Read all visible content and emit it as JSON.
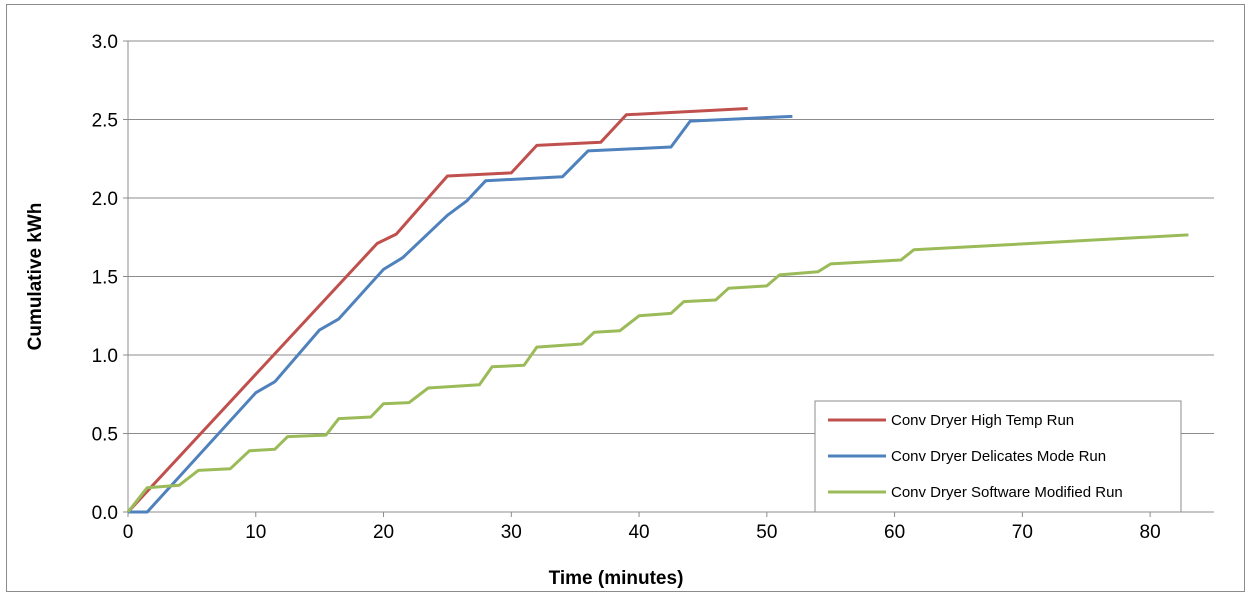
{
  "chart_data": {
    "type": "line",
    "title": "",
    "xlabel": "Time (minutes)",
    "ylabel": "Cumulative kWh",
    "xlim": [
      0,
      85
    ],
    "ylim": [
      0,
      3.0
    ],
    "x_ticks": [
      0,
      10,
      20,
      30,
      40,
      50,
      60,
      70,
      80
    ],
    "y_ticks": [
      "0.0",
      "0.5",
      "1.0",
      "1.5",
      "2.0",
      "2.5",
      "3.0"
    ],
    "grid": "horizontal",
    "legend_position": "bottom-right",
    "series": [
      {
        "name": "Conv Dryer High Temp Run",
        "color": "#c0504d",
        "points": [
          [
            0,
            0
          ],
          [
            19.5,
            1.71
          ],
          [
            21,
            1.77
          ],
          [
            25,
            2.14
          ],
          [
            30,
            2.16
          ],
          [
            32,
            2.335
          ],
          [
            37,
            2.355
          ],
          [
            39,
            2.53
          ],
          [
            48.5,
            2.57
          ]
        ]
      },
      {
        "name": "Conv Dryer Delicates Mode Run",
        "color": "#4f81bd",
        "points": [
          [
            0,
            0
          ],
          [
            1.5,
            0
          ],
          [
            10,
            0.76
          ],
          [
            11.5,
            0.83
          ],
          [
            15,
            1.16
          ],
          [
            16.5,
            1.23
          ],
          [
            20,
            1.545
          ],
          [
            21.5,
            1.62
          ],
          [
            25,
            1.89
          ],
          [
            26.5,
            1.98
          ],
          [
            28,
            2.11
          ],
          [
            34,
            2.135
          ],
          [
            36,
            2.3
          ],
          [
            42.5,
            2.325
          ],
          [
            44,
            2.49
          ],
          [
            52,
            2.52
          ]
        ]
      },
      {
        "name": "Conv Dryer Software Modified Run",
        "color": "#9bbb59",
        "points": [
          [
            0,
            0
          ],
          [
            1.5,
            0.155
          ],
          [
            4,
            0.17
          ],
          [
            5.5,
            0.265
          ],
          [
            8,
            0.275
          ],
          [
            9.5,
            0.39
          ],
          [
            11.5,
            0.4
          ],
          [
            12.5,
            0.48
          ],
          [
            15.5,
            0.49
          ],
          [
            16.5,
            0.595
          ],
          [
            19,
            0.605
          ],
          [
            20,
            0.69
          ],
          [
            22,
            0.697
          ],
          [
            23.5,
            0.79
          ],
          [
            27.5,
            0.81
          ],
          [
            28.5,
            0.925
          ],
          [
            31,
            0.935
          ],
          [
            32,
            1.05
          ],
          [
            35.5,
            1.07
          ],
          [
            36.5,
            1.145
          ],
          [
            38.5,
            1.155
          ],
          [
            40,
            1.25
          ],
          [
            42.5,
            1.265
          ],
          [
            43.5,
            1.34
          ],
          [
            46,
            1.35
          ],
          [
            47,
            1.425
          ],
          [
            50,
            1.44
          ],
          [
            51,
            1.51
          ],
          [
            54,
            1.53
          ],
          [
            55,
            1.58
          ],
          [
            60.5,
            1.605
          ],
          [
            61.5,
            1.67
          ],
          [
            83,
            1.765
          ]
        ]
      }
    ]
  }
}
